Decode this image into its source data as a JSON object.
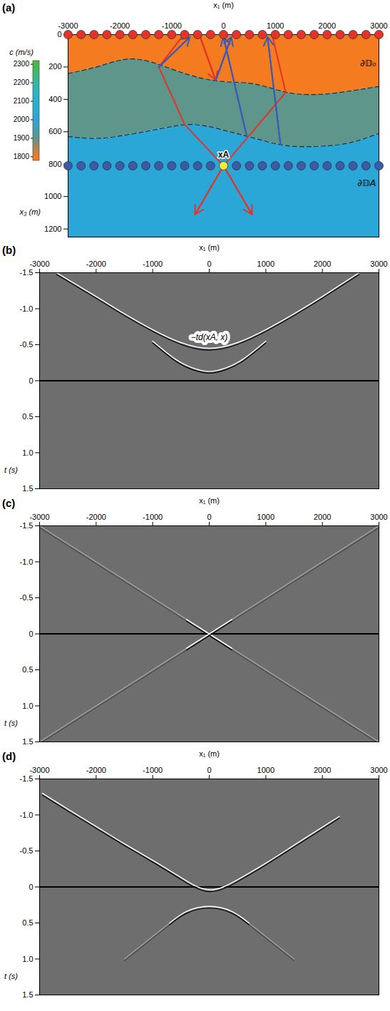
{
  "chart_data": [
    {
      "type": "section",
      "panel": "(a)",
      "x_label": "x₁ (m)",
      "y_label": "x₃ (m)",
      "xlim": [
        -3000,
        3000
      ],
      "xticks": [
        -3000,
        -2000,
        -1000,
        0,
        1000,
        2000,
        3000
      ],
      "ylim": [
        0,
        1250
      ],
      "yticks": [
        0,
        200,
        400,
        600,
        800,
        1000,
        1200
      ],
      "colorbar": {
        "label": "c (m/s)",
        "clim": [
          1780,
          2320
        ],
        "ticks": [
          1800,
          1900,
          2000,
          2100,
          2200,
          2300
        ],
        "stops": [
          {
            "value": 1800,
            "color": "#f47b20"
          },
          {
            "value": 1900,
            "color": "#5e968c"
          },
          {
            "value": 2000,
            "color": "#2aa7d6"
          },
          {
            "value": 2150,
            "color": "#27b6c8"
          },
          {
            "value": 2300,
            "color": "#4cb848"
          }
        ]
      },
      "layers": [
        {
          "velocity": 1800
        },
        {
          "velocity": 1900
        },
        {
          "velocity": 2000
        }
      ],
      "interfaces": {
        "x": [
          -3000,
          -2400,
          -1800,
          -1200,
          -600,
          0,
          600,
          1200,
          1800,
          2400,
          3000
        ],
        "depths": [
          [
            240,
            195,
            150,
            190,
            255,
            290,
            305,
            355,
            370,
            350,
            320
          ],
          [
            630,
            640,
            615,
            580,
            555,
            590,
            640,
            685,
            690,
            670,
            610
          ]
        ]
      },
      "line_style": "dashed",
      "boundaries": [
        {
          "name": "∂𝔻₀",
          "depth": 0,
          "color": "#e53329",
          "x": [
            -3000,
            -2750,
            -2500,
            -2250,
            -2000,
            -1750,
            -1500,
            -1250,
            -1000,
            -750,
            -500,
            -250,
            0,
            250,
            500,
            750,
            1000,
            1250,
            1500,
            1750,
            2000,
            2250,
            2500,
            2750,
            3000
          ]
        },
        {
          "name": "∂𝔻A",
          "depth": 810,
          "color": "#3b5aa8",
          "x": [
            -3000,
            -2750,
            -2500,
            -2250,
            -2000,
            -1750,
            -1500,
            -1250,
            -1000,
            -750,
            -500,
            -250,
            250,
            500,
            750,
            1000,
            1250,
            1500,
            1750,
            2000,
            2250,
            2500,
            2750,
            3000
          ]
        }
      ],
      "source": {
        "name": "xA",
        "x": 0,
        "depth": 810,
        "color": "#f6ec3b"
      },
      "rays": [
        {
          "color": "#e53329",
          "points": [
            [
              -800,
              15
            ],
            [
              -1250,
              200
            ],
            [
              -750,
              555
            ],
            [
              0,
              810
            ],
            [
              550,
              1110
            ]
          ]
        },
        {
          "color": "#e53329",
          "points": [
            [
              950,
              15
            ],
            [
              1200,
              357
            ],
            [
              0,
              810
            ],
            [
              -550,
              1110
            ]
          ]
        },
        {
          "color": "#e53329",
          "points": [
            [
              -450,
              15
            ],
            [
              -150,
              282
            ]
          ]
        },
        {
          "color": "#3a5bb5",
          "points": [
            [
              -1250,
              200
            ],
            [
              -650,
              15
            ]
          ]
        },
        {
          "color": "#3a5bb5",
          "points": [
            [
              450,
              628
            ],
            [
              0,
              15
            ]
          ]
        },
        {
          "color": "#3a5bb5",
          "points": [
            [
              -150,
              282
            ],
            [
              150,
              15
            ]
          ]
        },
        {
          "color": "#3a5bb5",
          "points": [
            [
              1100,
              680
            ],
            [
              850,
              15
            ]
          ]
        }
      ]
    },
    {
      "type": "wavefield",
      "panel": "(b)",
      "x_label": "x₁ (m)",
      "y_label": "t (s)",
      "xlim": [
        -3000,
        3000
      ],
      "xticks": [
        -3000,
        -2000,
        -1000,
        0,
        1000,
        2000,
        3000
      ],
      "ylim": [
        -1.5,
        1.5
      ],
      "yticks": [
        -1.5,
        {
          "value": -1,
          "label": "-1.0"
        },
        -0.5,
        0,
        0.5,
        {
          "value": 1,
          "label": "1.0"
        },
        1.5
      ],
      "hlines": [
        0
      ],
      "events": [
        {
          "color": "#ffffff",
          "line_style": "solid",
          "points": [
            [
              -2700,
              -1.5
            ],
            [
              -2000,
              -1.17
            ],
            [
              -1500,
              -0.93
            ],
            [
              -1000,
              -0.71
            ],
            [
              -500,
              -0.53
            ],
            [
              0,
              -0.45
            ],
            [
              500,
              -0.53
            ],
            [
              1000,
              -0.71
            ],
            [
              1500,
              -0.93
            ],
            [
              2000,
              -1.17
            ],
            [
              2650,
              -1.5
            ]
          ]
        },
        {
          "color": "#ffffff",
          "line_style": "solid",
          "points": [
            [
              -1000,
              -0.55
            ],
            [
              -600,
              -0.3
            ],
            [
              -300,
              -0.18
            ],
            [
              0,
              -0.13
            ],
            [
              300,
              -0.18
            ],
            [
              600,
              -0.3
            ],
            [
              1000,
              -0.55
            ]
          ]
        }
      ],
      "annotation": {
        "text": "−td(xA, x)",
        "x": 0,
        "t": -0.6
      }
    },
    {
      "type": "wavefield",
      "panel": "(c)",
      "x_label": "x₁ (m)",
      "y_label": "t (s)",
      "xlim": [
        -3000,
        3000
      ],
      "xticks": [
        -3000,
        -2000,
        -1000,
        0,
        1000,
        2000,
        3000
      ],
      "ylim": [
        -1.5,
        1.5
      ],
      "yticks": [
        -1.5,
        {
          "value": -1,
          "label": "-1.0"
        },
        -0.5,
        0,
        0.5,
        {
          "value": 1,
          "label": "1.0"
        },
        1.5
      ],
      "hlines": [
        0
      ],
      "events": [
        {
          "color": "#ffffff",
          "line_style": "faint",
          "points": [
            [
              -3000,
              -1.5
            ],
            [
              3000,
              1.5
            ]
          ]
        },
        {
          "color": "#ffffff",
          "line_style": "faint",
          "points": [
            [
              -3000,
              1.5
            ],
            [
              3000,
              -1.5
            ]
          ]
        },
        {
          "color": "#ffffff",
          "line_style": "solid",
          "points": [
            [
              -400,
              -0.2
            ],
            [
              400,
              0.2
            ]
          ]
        },
        {
          "color": "#ffffff",
          "line_style": "solid",
          "points": [
            [
              -400,
              0.2
            ],
            [
              400,
              -0.2
            ]
          ]
        }
      ]
    },
    {
      "type": "wavefield",
      "panel": "(d)",
      "x_label": "x₁ (m)",
      "y_label": "t (s)",
      "xlim": [
        -3000,
        3000
      ],
      "xticks": [
        -3000,
        -2000,
        -1000,
        0,
        1000,
        2000,
        3000
      ],
      "ylim": [
        -1.5,
        1.5
      ],
      "yticks": [
        -1.5,
        {
          "value": -1,
          "label": "-1.0"
        },
        -0.5,
        0,
        0.5,
        {
          "value": 1,
          "label": "1.0"
        },
        1.5
      ],
      "hlines": [
        0
      ],
      "events": [
        {
          "color": "#ffffff",
          "line_style": "solid",
          "points": [
            [
              -2950,
              -1.3
            ],
            [
              -2500,
              -1.08
            ],
            [
              -2000,
              -0.84
            ],
            [
              -1500,
              -0.6
            ],
            [
              -1000,
              -0.37
            ],
            [
              -500,
              -0.13
            ],
            [
              0,
              0.04
            ],
            [
              500,
              -0.1
            ],
            [
              1000,
              -0.33
            ],
            [
              1500,
              -0.58
            ],
            [
              2000,
              -0.83
            ],
            [
              2300,
              -0.98
            ]
          ]
        },
        {
          "color": "#ffffff",
          "line_style": "solid",
          "points": [
            [
              -700,
              0.5
            ],
            [
              -400,
              0.34
            ],
            [
              0,
              0.27
            ],
            [
              400,
              0.34
            ],
            [
              700,
              0.5
            ]
          ]
        },
        {
          "color": "#ffffff",
          "line_style": "faint",
          "points": [
            [
              -1500,
              1.0
            ],
            [
              -700,
              0.5
            ]
          ]
        },
        {
          "color": "#ffffff",
          "line_style": "faint",
          "points": [
            [
              700,
              0.5
            ],
            [
              1500,
              1.0
            ]
          ]
        }
      ]
    }
  ]
}
